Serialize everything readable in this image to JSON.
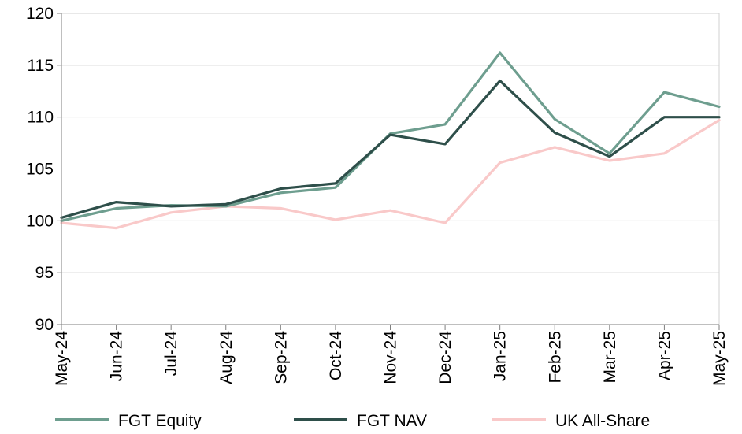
{
  "chart_data": {
    "type": "line",
    "title": "",
    "xlabel": "",
    "ylabel": "",
    "ylim": [
      90,
      120
    ],
    "yticks": [
      90,
      95,
      100,
      105,
      110,
      115,
      120
    ],
    "grid": "horizontal",
    "legend_position": "bottom",
    "x_tick_labels": [
      "May-24",
      "Jun-24",
      "Jul-24",
      "Aug-24",
      "Sep-24",
      "Oct-24",
      "Nov-24",
      "Dec-24",
      "Jan-25",
      "Feb-25",
      "Mar-25",
      "Apr-25",
      "May-25"
    ],
    "x": [
      "May-24",
      "Jun-24",
      "Jul-24",
      "Aug-24",
      "Sep-24",
      "Oct-24",
      "Nov-24",
      "Dec-24",
      "Jan-25",
      "Feb-25",
      "Mar-25",
      "Apr-25",
      "May-25"
    ],
    "series": [
      {
        "name": "FGT Equity",
        "color": "#6e9e8f",
        "values": [
          100.0,
          101.2,
          101.5,
          101.4,
          102.7,
          103.2,
          108.4,
          109.3,
          116.2,
          109.8,
          106.5,
          112.4,
          111.0
        ]
      },
      {
        "name": "FGT NAV",
        "color": "#2e4f4a",
        "values": [
          100.3,
          101.8,
          101.4,
          101.6,
          103.1,
          103.6,
          108.3,
          107.4,
          113.5,
          108.5,
          106.2,
          110.0,
          110.0
        ]
      },
      {
        "name": "UK All-Share",
        "color": "#f9c9c9",
        "values": [
          99.8,
          99.3,
          100.8,
          101.4,
          101.2,
          100.1,
          101.0,
          99.8,
          105.6,
          107.1,
          105.8,
          106.5,
          109.7
        ]
      }
    ]
  }
}
